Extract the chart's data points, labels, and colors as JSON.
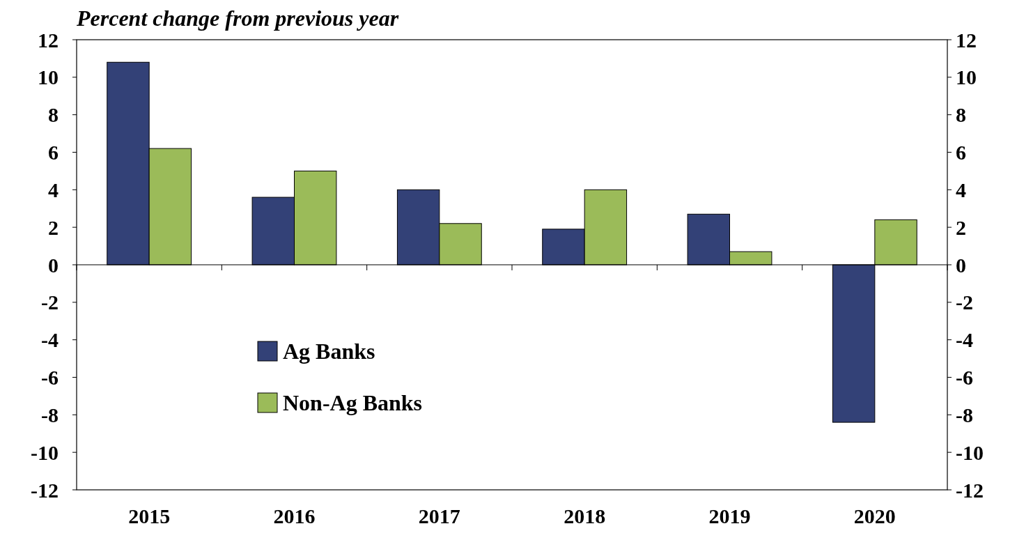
{
  "chart_data": {
    "type": "bar",
    "title": "Percent change from previous year",
    "categories": [
      "2015",
      "2016",
      "2017",
      "2018",
      "2019",
      "2020"
    ],
    "series": [
      {
        "name": "Ag Banks",
        "color": "#334177",
        "values": [
          10.8,
          3.6,
          4.0,
          1.9,
          2.7,
          -8.4
        ]
      },
      {
        "name": "Non-Ag Banks",
        "color": "#9bbb59",
        "values": [
          6.2,
          5.0,
          2.2,
          4.0,
          0.7,
          2.4
        ]
      }
    ],
    "ylim": [
      -12,
      12
    ],
    "yticks": [
      -12,
      -10,
      -8,
      -6,
      -4,
      -2,
      0,
      2,
      4,
      6,
      8,
      10,
      12
    ],
    "y2lim": [
      -12,
      12
    ],
    "y2ticks": [
      -12,
      -10,
      -8,
      -6,
      -4,
      -2,
      0,
      2,
      4,
      6,
      8,
      10,
      12
    ],
    "legend": "bottom left"
  }
}
